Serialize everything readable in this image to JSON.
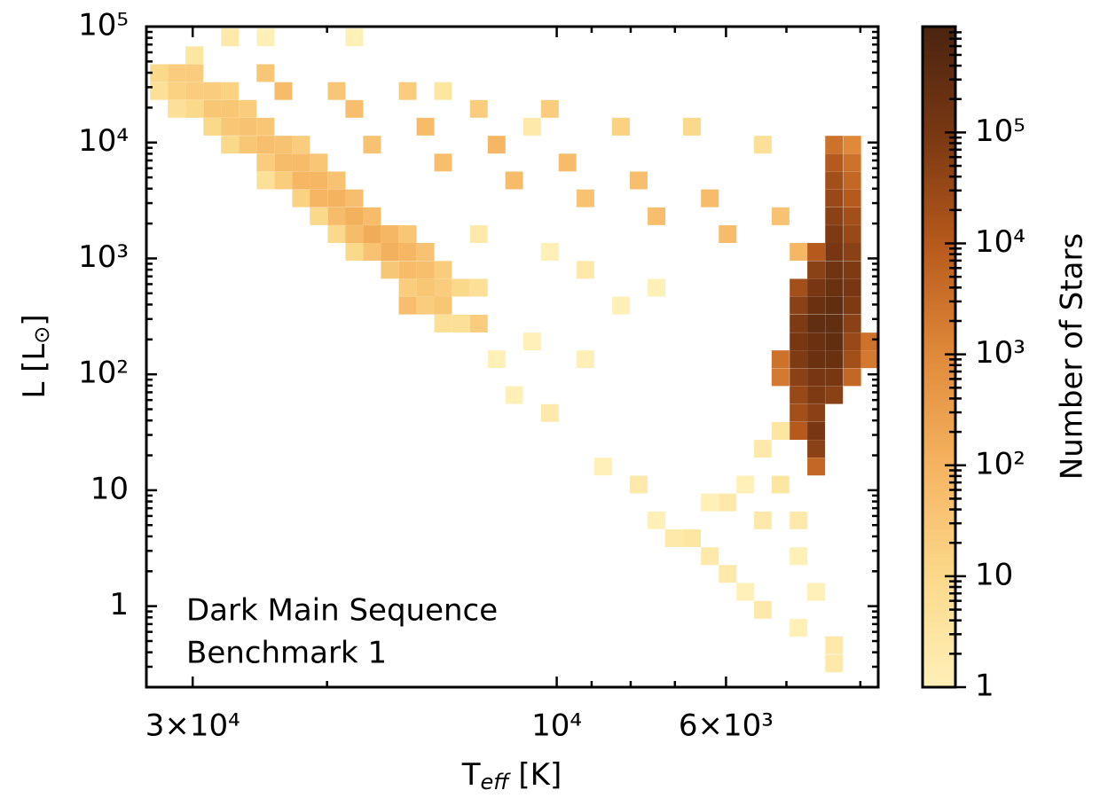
{
  "chart_data": {
    "type": "hist2d",
    "xlabel": {
      "main": "T",
      "sub": "eff",
      "end": " [K]"
    },
    "ylabel": {
      "main": "L [L",
      "sub": "⊙",
      "end": "]"
    },
    "colorbar_label": "Number of Stars",
    "annotation": [
      "Dark Main Sequence",
      "Benchmark 1"
    ],
    "xscale": "log",
    "yscale": "log",
    "colorscale": "log",
    "xlim": [
      34500,
      3790
    ],
    "xticks": [
      {
        "value": 30000,
        "label": "3×10⁴"
      },
      {
        "value": 10000,
        "label": "10⁴"
      },
      {
        "value": 6000,
        "label": "6×10³"
      }
    ],
    "xminor": [
      20000,
      9000,
      8000,
      7000,
      5000,
      4000
    ],
    "ylim": [
      0.2,
      100000
    ],
    "yticks": [
      1,
      10,
      {
        "value": 100,
        "label": "10²"
      },
      {
        "value": 1000,
        "label": "10³"
      },
      {
        "value": 10000,
        "label": "10⁴"
      },
      {
        "value": 100000,
        "label": "10⁵"
      }
    ],
    "yminor": [
      0.3,
      0.4,
      0.5,
      0.6,
      0.7,
      0.8,
      0.9,
      2,
      3,
      4,
      5,
      6,
      7,
      8,
      9,
      20,
      30,
      40,
      50,
      60,
      70,
      80,
      90,
      200,
      300,
      400,
      500,
      600,
      700,
      800,
      900,
      2000,
      3000,
      4000,
      5000,
      6000,
      7000,
      8000,
      9000,
      20000,
      30000,
      40000,
      50000,
      60000,
      70000,
      80000,
      90000
    ],
    "clim": [
      1,
      900000
    ],
    "cticks": [
      1,
      10,
      {
        "value": 100,
        "label": "10²"
      },
      {
        "value": 1000,
        "label": "10³"
      },
      {
        "value": 10000,
        "label": "10⁴"
      },
      {
        "value": 100000,
        "label": "10⁵"
      }
    ],
    "cminor": [
      2,
      3,
      4,
      5,
      6,
      7,
      8,
      9,
      20,
      30,
      40,
      50,
      60,
      70,
      80,
      90,
      200,
      300,
      400,
      500,
      600,
      700,
      800,
      900,
      2000,
      3000,
      4000,
      5000,
      6000,
      7000,
      8000,
      9000,
      20000,
      30000,
      40000,
      50000,
      60000,
      70000,
      80000,
      90000,
      200000,
      300000,
      400000,
      500000,
      600000,
      700000,
      800000
    ],
    "colormap": [
      "#fff0b8",
      "#fbd98a",
      "#f5b461",
      "#e08a3a",
      "#b85a1c",
      "#7a3812",
      "#4a2410"
    ],
    "cells": [
      [
        33210,
        39700,
        10
      ],
      [
        33210,
        27800,
        5
      ],
      [
        31480,
        39700,
        20
      ],
      [
        31480,
        27800,
        15
      ],
      [
        31480,
        19500,
        5
      ],
      [
        29840,
        39700,
        20
      ],
      [
        29840,
        27800,
        20
      ],
      [
        29840,
        19500,
        10
      ],
      [
        28280,
        27800,
        20
      ],
      [
        28280,
        19500,
        30
      ],
      [
        28280,
        13700,
        10
      ],
      [
        26810,
        27800,
        15
      ],
      [
        26810,
        19500,
        30
      ],
      [
        26810,
        13700,
        30
      ],
      [
        26810,
        9580,
        10
      ],
      [
        25410,
        19500,
        20
      ],
      [
        25410,
        13700,
        40
      ],
      [
        25410,
        9580,
        30
      ],
      [
        24080,
        13700,
        30
      ],
      [
        24080,
        9580,
        50
      ],
      [
        24080,
        6720,
        20
      ],
      [
        24080,
        4710,
        5
      ],
      [
        22820,
        9580,
        40
      ],
      [
        22820,
        6720,
        60
      ],
      [
        22820,
        4710,
        20
      ],
      [
        21630,
        9580,
        20
      ],
      [
        21630,
        6720,
        60
      ],
      [
        21630,
        4710,
        80
      ],
      [
        21630,
        3300,
        15
      ],
      [
        20510,
        6720,
        30
      ],
      [
        20510,
        4710,
        80
      ],
      [
        20510,
        3300,
        90
      ],
      [
        20510,
        2310,
        10
      ],
      [
        19430,
        4710,
        40
      ],
      [
        19430,
        3300,
        100
      ],
      [
        19430,
        2310,
        60
      ],
      [
        19430,
        1620,
        10
      ],
      [
        18420,
        3300,
        50
      ],
      [
        18420,
        2310,
        120
      ],
      [
        18420,
        1620,
        60
      ],
      [
        18420,
        1140,
        10
      ],
      [
        17460,
        2310,
        60
      ],
      [
        17460,
        1620,
        150
      ],
      [
        17460,
        1140,
        40
      ],
      [
        16550,
        1620,
        80
      ],
      [
        16550,
        1140,
        120
      ],
      [
        16550,
        797,
        30
      ],
      [
        15680,
        1620,
        30
      ],
      [
        15680,
        1140,
        80
      ],
      [
        15680,
        797,
        60
      ],
      [
        15680,
        559,
        20
      ],
      [
        14860,
        1140,
        40
      ],
      [
        14860,
        797,
        50
      ],
      [
        14860,
        559,
        30
      ],
      [
        14860,
        392,
        20
      ],
      [
        14090,
        797,
        20
      ],
      [
        14090,
        559,
        20
      ],
      [
        14090,
        392,
        15
      ],
      [
        14090,
        274,
        5
      ],
      [
        13350,
        559,
        10
      ],
      [
        13350,
        274,
        5
      ],
      [
        12650,
        559,
        5
      ],
      [
        24080,
        39700,
        30
      ],
      [
        19430,
        27800,
        30
      ],
      [
        15680,
        27800,
        20
      ],
      [
        12650,
        19500,
        20
      ],
      [
        10210,
        19500,
        20
      ],
      [
        8240,
        13700,
        15
      ],
      [
        6650,
        13700,
        10
      ],
      [
        5370,
        9580,
        5
      ],
      [
        22820,
        27800,
        60
      ],
      [
        18420,
        19500,
        50
      ],
      [
        14860,
        13700,
        60
      ],
      [
        11990,
        9580,
        80
      ],
      [
        9680,
        6720,
        60
      ],
      [
        7810,
        4710,
        50
      ],
      [
        6300,
        3300,
        60
      ],
      [
        5090,
        2310,
        40
      ],
      [
        17460,
        9580,
        40
      ],
      [
        14090,
        6720,
        50
      ],
      [
        11370,
        4710,
        60
      ],
      [
        9170,
        3300,
        40
      ],
      [
        7400,
        2310,
        50
      ],
      [
        5970,
        1620,
        60
      ],
      [
        4820,
        1140,
        80
      ],
      [
        15680,
        392,
        50
      ],
      [
        14090,
        392,
        30
      ],
      [
        12650,
        274,
        20
      ],
      [
        14090,
        27800,
        3
      ],
      [
        10770,
        13700,
        2
      ],
      [
        18420,
        80700,
        1
      ],
      [
        26810,
        80700,
        2
      ],
      [
        29840,
        56600,
        3
      ],
      [
        24080,
        80700,
        1
      ],
      [
        5090,
        135,
        3000
      ],
      [
        5090,
        94.5,
        2000
      ],
      [
        4820,
        559,
        20000
      ],
      [
        4820,
        392,
        50000
      ],
      [
        4820,
        274,
        80000
      ],
      [
        4820,
        192,
        100000
      ],
      [
        4820,
        135,
        80000
      ],
      [
        4820,
        94.5,
        50000
      ],
      [
        4820,
        66.2,
        30000
      ],
      [
        4820,
        46.4,
        20000
      ],
      [
        4820,
        32.5,
        10000
      ],
      [
        4570,
        1140,
        10000
      ],
      [
        4570,
        797,
        50000
      ],
      [
        4570,
        559,
        100000
      ],
      [
        4570,
        392,
        200000
      ],
      [
        4570,
        274,
        300000
      ],
      [
        4570,
        192,
        200000
      ],
      [
        4570,
        135,
        200000
      ],
      [
        4570,
        94.5,
        100000
      ],
      [
        4570,
        66.2,
        80000
      ],
      [
        4570,
        46.4,
        50000
      ],
      [
        4570,
        32.5,
        100000
      ],
      [
        4570,
        22.8,
        50000
      ],
      [
        4570,
        16.0,
        5000
      ],
      [
        4330,
        9580,
        3000
      ],
      [
        4330,
        6720,
        10000
      ],
      [
        4330,
        4710,
        20000
      ],
      [
        4330,
        3300,
        30000
      ],
      [
        4330,
        2310,
        50000
      ],
      [
        4330,
        1620,
        80000
      ],
      [
        4330,
        1140,
        100000
      ],
      [
        4330,
        797,
        150000
      ],
      [
        4330,
        559,
        200000
      ],
      [
        4330,
        392,
        300000
      ],
      [
        4330,
        274,
        300000
      ],
      [
        4330,
        192,
        300000
      ],
      [
        4330,
        135,
        200000
      ],
      [
        4330,
        94.5,
        100000
      ],
      [
        4330,
        66.2,
        50000
      ],
      [
        4100,
        9580,
        1000
      ],
      [
        4100,
        6720,
        3000
      ],
      [
        4100,
        4710,
        5000
      ],
      [
        4100,
        3300,
        10000
      ],
      [
        4100,
        2310,
        20000
      ],
      [
        4100,
        1620,
        30000
      ],
      [
        4100,
        1140,
        50000
      ],
      [
        4100,
        797,
        80000
      ],
      [
        4100,
        559,
        100000
      ],
      [
        4100,
        392,
        80000
      ],
      [
        4100,
        274,
        50000
      ],
      [
        4100,
        192,
        30000
      ],
      [
        4100,
        135,
        20000
      ],
      [
        4100,
        94.5,
        5000
      ],
      [
        3890,
        192,
        3000
      ],
      [
        3890,
        135,
        2000
      ],
      [
        11990,
        135,
        1
      ],
      [
        11370,
        66.2,
        1
      ],
      [
        10210,
        46.4,
        2
      ],
      [
        9170,
        135,
        1
      ],
      [
        8690,
        16.0,
        1
      ],
      [
        7810,
        11.2,
        2
      ],
      [
        7400,
        5.5,
        1
      ],
      [
        7020,
        3.86,
        2
      ],
      [
        6650,
        3.86,
        3
      ],
      [
        6300,
        2.7,
        2
      ],
      [
        5970,
        1.9,
        2
      ],
      [
        5660,
        1.33,
        1
      ],
      [
        5370,
        0.93,
        2
      ],
      [
        4820,
        0.65,
        1
      ],
      [
        4330,
        0.46,
        2
      ],
      [
        5970,
        7.85,
        2
      ],
      [
        5370,
        22.8,
        2
      ],
      [
        5090,
        11.2,
        3
      ],
      [
        4820,
        5.5,
        2
      ],
      [
        5370,
        5.5,
        2
      ],
      [
        5660,
        11.2,
        1
      ],
      [
        5090,
        32.5,
        3
      ],
      [
        4820,
        2.7,
        1
      ],
      [
        4570,
        1.33,
        1
      ],
      [
        6300,
        7.85,
        1
      ],
      [
        12650,
        1620,
        2
      ],
      [
        10210,
        1140,
        1
      ],
      [
        9170,
        797,
        2
      ],
      [
        8240,
        392,
        1
      ],
      [
        7400,
        559,
        1
      ],
      [
        10770,
        192,
        1
      ],
      [
        4330,
        0.32,
        2
      ]
    ]
  }
}
